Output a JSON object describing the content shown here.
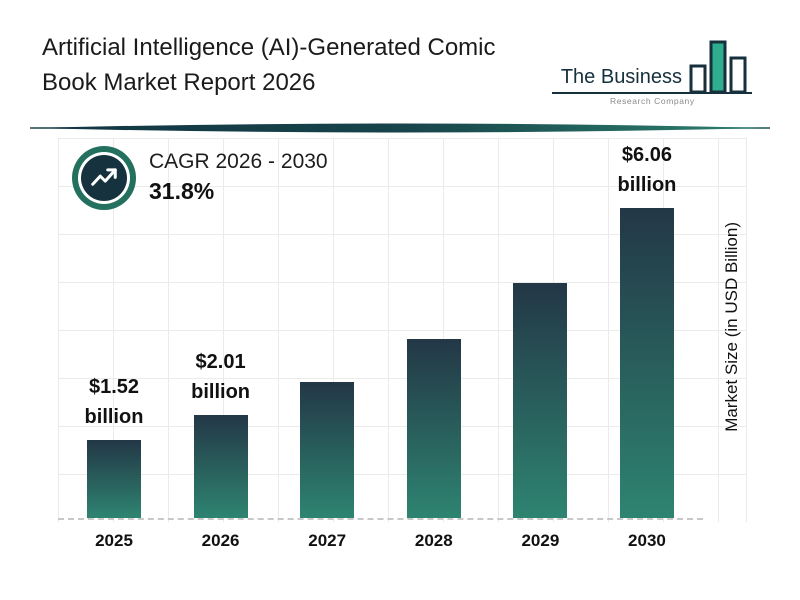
{
  "header": {
    "title_line1": "Artificial Intelligence (AI)-Generated Comic",
    "title_line2": "Book Market Report 2026",
    "logo": {
      "name": "The Business",
      "subtitle": "Research Company"
    }
  },
  "cagr": {
    "label": "CAGR 2026 - 2030",
    "value": "31.8%"
  },
  "chart_data": {
    "type": "bar",
    "title": "Artificial Intelligence (AI)-Generated Comic Book Market Report 2026",
    "ylabel": "Market Size (in USD Billion)",
    "xlabel": "",
    "ylim": [
      0,
      6.5
    ],
    "grid": true,
    "legend": false,
    "categories": [
      "2025",
      "2026",
      "2027",
      "2028",
      "2029",
      "2030"
    ],
    "values": [
      1.52,
      2.01,
      2.65,
      3.49,
      4.6,
      6.06
    ],
    "bars": [
      {
        "year": "2025",
        "value": 1.52,
        "label_lines": [
          "$1.52",
          "billion"
        ]
      },
      {
        "year": "2026",
        "value": 2.01,
        "label_lines": [
          "$2.01",
          "billion"
        ]
      },
      {
        "year": "2027",
        "value": 2.65,
        "label_lines": []
      },
      {
        "year": "2028",
        "value": 3.49,
        "label_lines": []
      },
      {
        "year": "2029",
        "value": 4.6,
        "label_lines": []
      },
      {
        "year": "2030",
        "value": 6.06,
        "label_lines": [
          "$6.06",
          "billion"
        ]
      }
    ],
    "annotations": [
      "CAGR 2026 - 2030",
      "31.8%"
    ],
    "colors": {
      "bar_top": "#233746",
      "bar_bottom": "#2E8471",
      "accent_teal": "#24705F",
      "dark_navy": "#17323F",
      "logo_green": "#2FAE8F"
    }
  }
}
